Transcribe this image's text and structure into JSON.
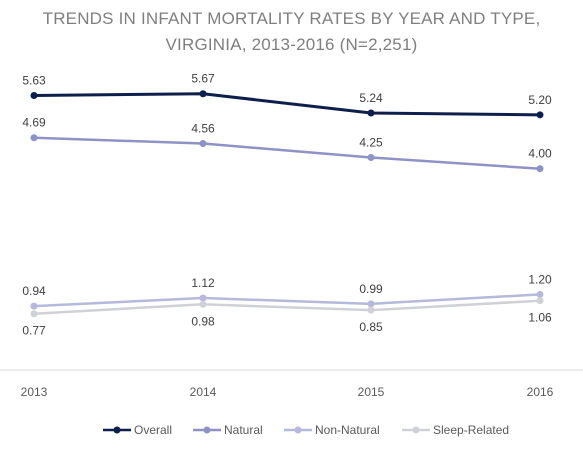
{
  "chart_data": {
    "type": "line",
    "title": "TRENDS IN INFANT MORTALITY RATES BY YEAR AND TYPE,",
    "subtitle": "VIRGINIA, 2013-2016 (N=2,251)",
    "categories": [
      "2013",
      "2014",
      "2015",
      "2016"
    ],
    "series": [
      {
        "name": "Overall",
        "values": [
          5.63,
          5.67,
          5.24,
          5.2
        ],
        "labels": [
          "5.63",
          "5.67",
          "5.24",
          "5.20"
        ],
        "color": "#0d1f4a"
      },
      {
        "name": "Natural",
        "values": [
          4.69,
          4.56,
          4.25,
          4.0
        ],
        "labels": [
          "4.69",
          "4.56",
          "4.25",
          "4.00"
        ],
        "color": "#8e92c4"
      },
      {
        "name": "Non-Natural",
        "values": [
          0.94,
          1.12,
          0.99,
          1.2
        ],
        "labels": [
          "0.94",
          "1.12",
          "0.99",
          "1.20"
        ],
        "color": "#b6b8dc"
      },
      {
        "name": "Sleep-Related",
        "values": [
          0.77,
          0.98,
          0.85,
          1.06
        ],
        "labels": [
          "0.77",
          "0.98",
          "0.85",
          "1.06"
        ],
        "color": "#cfd1d6"
      }
    ],
    "grid": false,
    "legend": "bottom"
  }
}
